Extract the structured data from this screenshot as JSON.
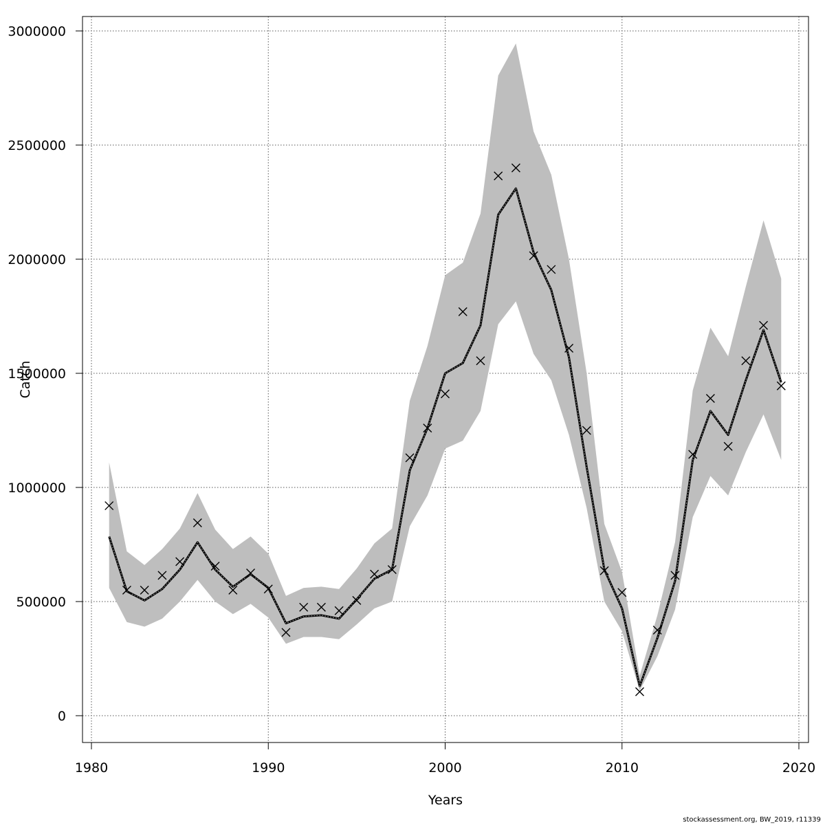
{
  "chart_data": {
    "type": "line",
    "xlabel": "Years",
    "ylabel": "Catch",
    "xlim": [
      1980,
      2020
    ],
    "ylim": [
      0,
      3000000
    ],
    "x_ticks": [
      1980,
      1990,
      2000,
      2010,
      2020
    ],
    "y_ticks": [
      0,
      500000,
      1000000,
      1500000,
      2000000,
      2500000,
      3000000
    ],
    "grid": true,
    "colors": {
      "band": "#bebebe",
      "line": "#000000",
      "grid": "#555555"
    },
    "series": [
      {
        "type": "line",
        "x": [
          1981,
          1982,
          1983,
          1984,
          1985,
          1986,
          1987,
          1988,
          1989,
          1990,
          1991,
          1992,
          1993,
          1994,
          1995,
          1996,
          1997,
          1998,
          1999,
          2000,
          2001,
          2002,
          2003,
          2004,
          2005,
          2006,
          2007,
          2008,
          2009,
          2010,
          2011,
          2012,
          2013,
          2014,
          2015,
          2016,
          2017,
          2018,
          2019
        ],
        "y": [
          785000,
          545000,
          505000,
          555000,
          640000,
          760000,
          640000,
          565000,
          620000,
          560000,
          405000,
          435000,
          440000,
          425000,
          510000,
          600000,
          640000,
          1075000,
          1260000,
          1500000,
          1545000,
          1710000,
          2195000,
          2310000,
          2030000,
          1865000,
          1570000,
          1090000,
          640000,
          470000,
          130000,
          340000,
          590000,
          1120000,
          1335000,
          1230000,
          1470000,
          1690000,
          1460000
        ]
      },
      {
        "type": "band",
        "x": [
          1981,
          1982,
          1983,
          1984,
          1985,
          1986,
          1987,
          1988,
          1989,
          1990,
          1991,
          1992,
          1993,
          1994,
          1995,
          1996,
          1997,
          1998,
          1999,
          2000,
          2001,
          2002,
          2003,
          2004,
          2005,
          2006,
          2007,
          2008,
          2009,
          2010,
          2011,
          2012,
          2013,
          2014,
          2015,
          2016,
          2017,
          2018,
          2019
        ],
        "lower": [
          560000,
          410000,
          390000,
          425000,
          500000,
          595000,
          500000,
          445000,
          490000,
          430000,
          315000,
          345000,
          345000,
          335000,
          400000,
          470000,
          500000,
          830000,
          965000,
          1170000,
          1205000,
          1335000,
          1715000,
          1815000,
          1585000,
          1470000,
          1230000,
          910000,
          500000,
          370000,
          110000,
          260000,
          465000,
          870000,
          1050000,
          965000,
          1155000,
          1320000,
          1120000
        ],
        "upper": [
          1110000,
          720000,
          660000,
          730000,
          820000,
          975000,
          815000,
          730000,
          785000,
          710000,
          525000,
          560000,
          565000,
          555000,
          645000,
          755000,
          820000,
          1380000,
          1620000,
          1930000,
          1985000,
          2200000,
          2805000,
          2945000,
          2560000,
          2370000,
          2000000,
          1500000,
          840000,
          630000,
          175000,
          440000,
          760000,
          1425000,
          1700000,
          1575000,
          1880000,
          2170000,
          1915000
        ]
      },
      {
        "type": "scatter",
        "marker": "x",
        "x": [
          1981,
          1982,
          1983,
          1984,
          1985,
          1986,
          1987,
          1988,
          1989,
          1990,
          1991,
          1992,
          1993,
          1994,
          1995,
          1996,
          1997,
          1998,
          1999,
          2000,
          2001,
          2002,
          2003,
          2004,
          2005,
          2006,
          2007,
          2008,
          2009,
          2010,
          2011,
          2012,
          2013,
          2014,
          2015,
          2016,
          2017,
          2018,
          2019
        ],
        "y": [
          920000,
          550000,
          550000,
          615000,
          675000,
          845000,
          655000,
          550000,
          625000,
          555000,
          365000,
          475000,
          475000,
          460000,
          505000,
          620000,
          640000,
          1130000,
          1260000,
          1410000,
          1770000,
          1555000,
          2365000,
          2400000,
          2015000,
          1955000,
          1610000,
          1250000,
          635000,
          540000,
          105000,
          375000,
          615000,
          1145000,
          1390000,
          1180000,
          1555000,
          1710000,
          1445000
        ]
      }
    ]
  },
  "credit": "stockassessment.org, BW_2019, r11339"
}
